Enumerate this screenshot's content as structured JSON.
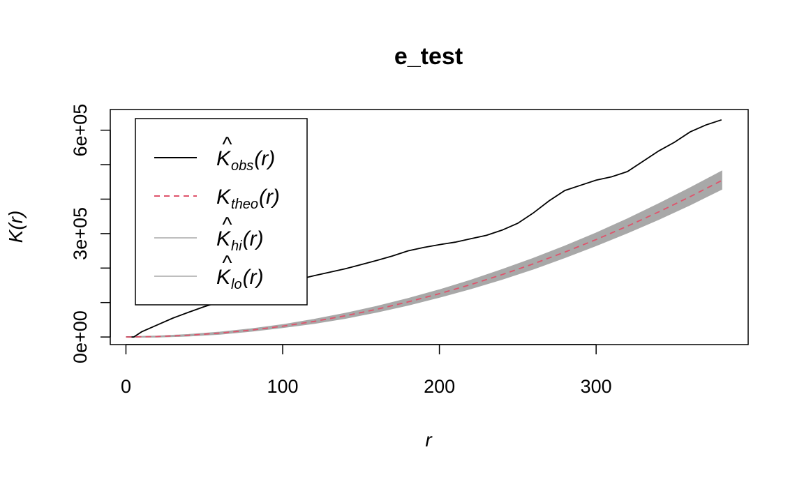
{
  "chart_data": {
    "type": "line",
    "title": "e_test",
    "xlabel": "r",
    "ylabel": "K(r)",
    "xlim": [
      -10,
      397
    ],
    "ylim": [
      -22000,
      660000
    ],
    "xticks": [
      0,
      100,
      200,
      300
    ],
    "xtick_labels": [
      "0",
      "100",
      "200",
      "300"
    ],
    "yticks": [
      0,
      100000,
      200000,
      300000,
      400000,
      500000,
      600000
    ],
    "ytick_labels": [
      "0e+00",
      "",
      "",
      "3e+05",
      "",
      "",
      "6e+05"
    ],
    "grid": false,
    "legend_position": "top-left",
    "legend": [
      {
        "main": "K",
        "hat": true,
        "sub": "obs",
        "arg": "(r)",
        "style": "solid",
        "color": "#000000"
      },
      {
        "main": "K",
        "hat": false,
        "sub": "theo",
        "arg": "(r)",
        "style": "dashed",
        "color": "#DF536B"
      },
      {
        "main": "K",
        "hat": true,
        "sub": "hi",
        "arg": "(r)",
        "style": "solid",
        "color": "#BEBEBE"
      },
      {
        "main": "K",
        "hat": true,
        "sub": "lo",
        "arg": "(r)",
        "style": "solid",
        "color": "#BEBEBE"
      }
    ],
    "series": [
      {
        "key": "obs",
        "color": "#000000",
        "x": [
          0,
          5,
          10,
          20,
          30,
          40,
          50,
          60,
          70,
          80,
          90,
          100,
          110,
          120,
          130,
          140,
          150,
          160,
          170,
          180,
          190,
          200,
          210,
          220,
          230,
          240,
          250,
          260,
          270,
          280,
          290,
          300,
          310,
          320,
          330,
          340,
          350,
          360,
          370,
          380
        ],
        "y": [
          0,
          0,
          15000,
          35000,
          55000,
          72000,
          88000,
          102000,
          112000,
          125000,
          140000,
          155000,
          167000,
          178000,
          188000,
          198000,
          210000,
          222000,
          235000,
          250000,
          260000,
          268000,
          275000,
          285000,
          295000,
          310000,
          330000,
          360000,
          395000,
          425000,
          440000,
          455000,
          465000,
          480000,
          510000,
          540000,
          565000,
          595000,
          615000,
          630000
        ]
      },
      {
        "key": "theo",
        "color": "#DF536B",
        "x": [
          0,
          20,
          40,
          60,
          80,
          100,
          120,
          140,
          160,
          180,
          200,
          220,
          240,
          260,
          280,
          300,
          320,
          340,
          360,
          380
        ],
        "y": [
          0,
          1257,
          5027,
          11310,
          20106,
          31416,
          45239,
          61575,
          80425,
          101788,
          125664,
          152053,
          180956,
          212372,
          246301,
          282743,
          321699,
          363168,
          407150,
          453646
        ]
      }
    ],
    "envelope": {
      "color": "#A8A8A8",
      "x": [
        0,
        20,
        40,
        60,
        80,
        100,
        120,
        140,
        160,
        180,
        200,
        220,
        240,
        260,
        280,
        300,
        320,
        340,
        360,
        380
      ],
      "hi": [
        0,
        2000,
        6500,
        13500,
        23000,
        35000,
        50500,
        68000,
        88000,
        111000,
        136000,
        164000,
        195000,
        227500,
        263000,
        301000,
        342000,
        386000,
        432000,
        480000
      ],
      "lo": [
        0,
        500,
        3500,
        9000,
        17500,
        28000,
        40000,
        55000,
        73000,
        93000,
        116000,
        141000,
        168000,
        198000,
        231000,
        266000,
        303000,
        342000,
        384000,
        429000
      ]
    }
  }
}
